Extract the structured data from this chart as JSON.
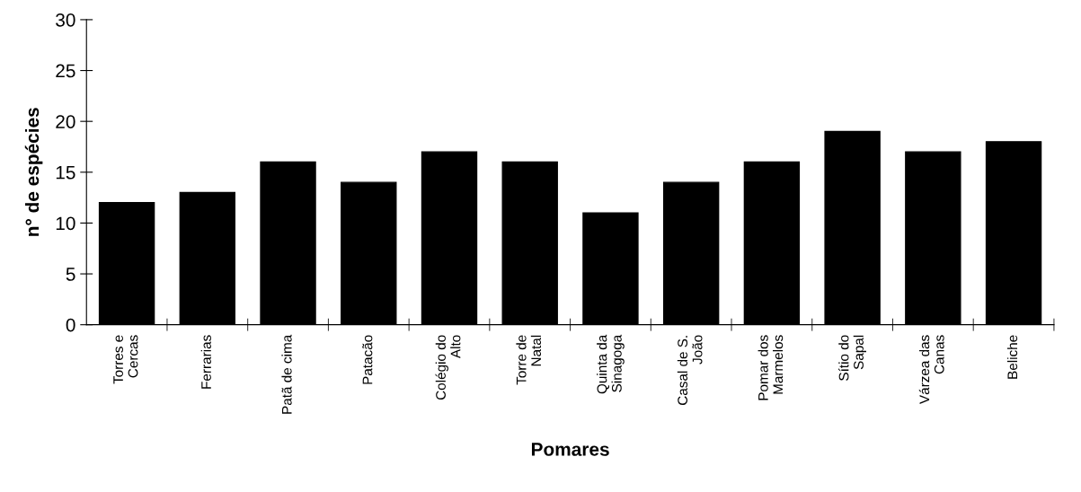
{
  "chart_data": {
    "type": "bar",
    "xlabel": "Pomares",
    "ylabel": "n° de espécies",
    "categories": [
      "Torres e\nCercas",
      "Ferrarias",
      "Patã de cima",
      "Patacão",
      "Colégio do\nAlto",
      "Torre de\nNatal",
      "Quinta da\nSinagoga",
      "Casal de S.\nJoão",
      "Pomar dos\nMarmelos",
      "Sítio do\nSapal",
      "Várzea das\nCanas",
      "Beliche"
    ],
    "values": [
      12,
      13,
      16,
      14,
      17,
      16,
      11,
      14,
      16,
      19,
      17,
      18
    ],
    "color": "#000000",
    "ylim": [
      0,
      30
    ],
    "yticks": [
      0,
      5,
      10,
      15,
      20,
      25,
      30
    ],
    "grid": false
  }
}
